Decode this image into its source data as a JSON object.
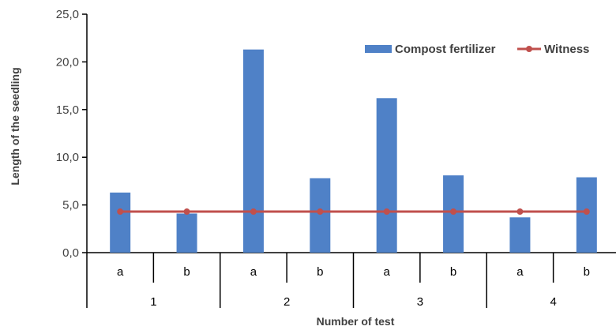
{
  "chart_data": {
    "type": "bar",
    "ylabel": "Length of the seedling",
    "xlabel": "Number of test",
    "ylim": [
      0,
      25
    ],
    "y_ticks": [
      "0,0",
      "5,0",
      "10,0",
      "15,0",
      "20,0",
      "25,0"
    ],
    "categories": [
      "a",
      "b",
      "a",
      "b",
      "a",
      "b",
      "a",
      "b"
    ],
    "groups": [
      "1",
      "2",
      "3",
      "4"
    ],
    "series": [
      {
        "name": "Compost fertilizer",
        "type": "bar",
        "color": "#4f81c7",
        "values": [
          6.3,
          4.1,
          21.3,
          7.8,
          16.2,
          8.1,
          3.7,
          7.9
        ]
      },
      {
        "name": "Witness",
        "type": "line",
        "color": "#c0504d",
        "values": [
          4.3,
          4.3,
          4.3,
          4.3,
          4.3,
          4.3,
          4.3,
          4.3
        ]
      }
    ],
    "legend": "top-right",
    "grid": false
  }
}
